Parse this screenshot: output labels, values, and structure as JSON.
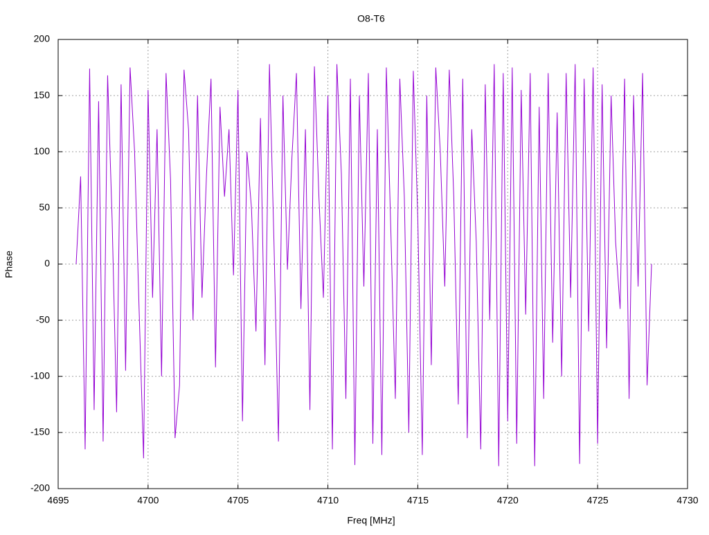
{
  "chart_data": {
    "type": "line",
    "title": "O8-T6",
    "x_label": "Freq [MHz]",
    "y_label": "Phase",
    "x": [
      4696,
      4696.25,
      4696.5,
      4696.75,
      4697,
      4697.25,
      4697.5,
      4697.75,
      4698,
      4698.25,
      4698.5,
      4698.75,
      4699,
      4699.25,
      4699.5,
      4699.75,
      4700,
      4700.25,
      4700.5,
      4700.75,
      4701,
      4701.25,
      4701.5,
      4701.75,
      4702,
      4702.25,
      4702.5,
      4702.75,
      4703,
      4703.25,
      4703.5,
      4703.75,
      4704,
      4704.25,
      4704.5,
      4704.75,
      4705,
      4705.25,
      4705.5,
      4705.75,
      4706,
      4706.25,
      4706.5,
      4706.75,
      4707,
      4707.25,
      4707.5,
      4707.75,
      4708,
      4708.25,
      4708.5,
      4708.75,
      4709,
      4709.25,
      4709.5,
      4709.75,
      4710,
      4710.25,
      4710.5,
      4710.75,
      4711,
      4711.25,
      4711.5,
      4711.75,
      4712,
      4712.25,
      4712.5,
      4712.75,
      4713,
      4713.25,
      4713.5,
      4713.75,
      4714,
      4714.25,
      4714.5,
      4714.75,
      4715,
      4715.25,
      4715.5,
      4715.75,
      4716,
      4716.25,
      4716.5,
      4716.75,
      4717,
      4717.25,
      4717.5,
      4717.75,
      4718,
      4718.25,
      4718.5,
      4718.75,
      4719,
      4719.25,
      4719.5,
      4719.75,
      4720,
      4720.25,
      4720.5,
      4720.75,
      4721,
      4721.25,
      4721.5,
      4721.75,
      4722,
      4722.25,
      4722.5,
      4722.75,
      4723,
      4723.25,
      4723.5,
      4723.75,
      4724,
      4724.25,
      4724.5,
      4724.75,
      4725,
      4725.25,
      4725.5,
      4725.75,
      4726,
      4726.25,
      4726.5,
      4726.75,
      4727,
      4727.25,
      4727.5,
      4727.75,
      4728
    ],
    "values": [
      0,
      78,
      -165,
      174,
      -130,
      145,
      -158,
      168,
      40,
      -132,
      160,
      -95,
      175,
      100,
      -40,
      -173,
      155,
      -30,
      120,
      -100,
      170,
      75,
      -155,
      -108,
      173,
      120,
      -50,
      150,
      -30,
      80,
      165,
      -92,
      140,
      60,
      120,
      -10,
      155,
      -140,
      100,
      50,
      -60,
      130,
      -90,
      178,
      20,
      -158,
      150,
      -5,
      95,
      170,
      -40,
      120,
      -130,
      176,
      60,
      -30,
      150,
      -165,
      178,
      80,
      -120,
      165,
      -179,
      150,
      -20,
      170,
      -160,
      120,
      -170,
      175,
      30,
      -120,
      165,
      60,
      -150,
      172,
      40,
      -170,
      150,
      -90,
      175,
      100,
      -20,
      173,
      60,
      -125,
      165,
      -155,
      120,
      20,
      -165,
      160,
      -50,
      178,
      -180,
      170,
      -140,
      175,
      -160,
      155,
      -45,
      170,
      -180,
      140,
      -120,
      170,
      -70,
      135,
      -100,
      170,
      -30,
      178,
      -178,
      165,
      -60,
      175,
      -160,
      160,
      -75,
      150,
      20,
      -40,
      165,
      -120,
      150,
      -20,
      170,
      -108,
      0
    ],
    "color": "#9400d3",
    "xlim": [
      4695,
      4730
    ],
    "xticks": [
      4695,
      4700,
      4705,
      4710,
      4715,
      4720,
      4725,
      4730
    ],
    "ylim": [
      -200,
      200
    ],
    "yticks": [
      -200,
      -150,
      -100,
      -50,
      0,
      50,
      100,
      150,
      200
    ],
    "grid": true
  }
}
